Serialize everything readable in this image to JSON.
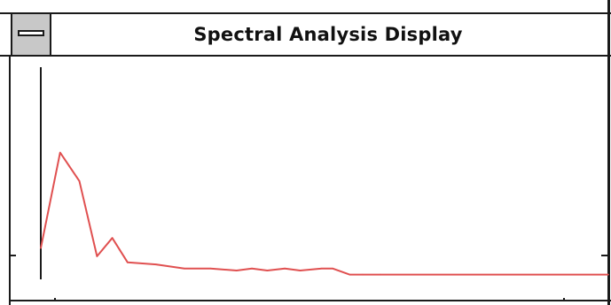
{
  "window": {
    "title": "Spectral Analysis Display"
  },
  "colors": {
    "frame": "#1a1a1a",
    "system_menu_bg": "#c8c8c8",
    "trace": "#e05050",
    "axis": "#1a1a1a"
  },
  "icons": {
    "system_menu": "system-menu-icon"
  },
  "chart_data": {
    "type": "line",
    "title": "",
    "xlabel": "",
    "ylabel": "",
    "grid": false,
    "xlim": [
      0,
      100
    ],
    "ylim": [
      0,
      100
    ],
    "series": [
      {
        "x": [
          0,
          3.4,
          6.8,
          9.9,
          12.6,
          15.3,
          20.3,
          25.3,
          29.9,
          34.5,
          37.2,
          39.9,
          43.0,
          45.7,
          49.5,
          51.4,
          54.4,
          56.7,
          59.8,
          100
        ],
        "y": [
          11,
          58,
          44,
          7,
          16,
          4,
          3,
          1,
          1,
          0,
          1,
          0,
          1,
          0,
          1,
          1,
          -2,
          -2,
          -2,
          -2
        ]
      }
    ]
  }
}
